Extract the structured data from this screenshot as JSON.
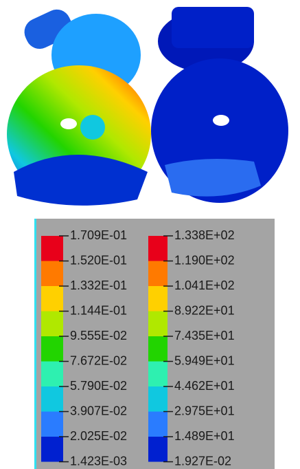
{
  "legends": [
    {
      "labels": [
        "1.709E-01",
        "1.520E-01",
        "1.332E-01",
        "1.144E-01",
        "9.555E-02",
        "7.672E-02",
        "5.790E-02",
        "3.907E-02",
        "2.025E-02",
        "1.423E-03"
      ]
    },
    {
      "labels": [
        "1.338E+02",
        "1.190E+02",
        "1.041E+02",
        "8.922E+01",
        "7.435E+01",
        "5.949E+01",
        "4.462E+01",
        "2.975E+01",
        "1.489E+01",
        "1.927E-02"
      ]
    }
  ],
  "colors": [
    "#e8001a",
    "#ff7a00",
    "#ffd000",
    "#b0e800",
    "#22d400",
    "#2ef0b0",
    "#10c8e0",
    "#2a7cff",
    "#0020d0"
  ]
}
